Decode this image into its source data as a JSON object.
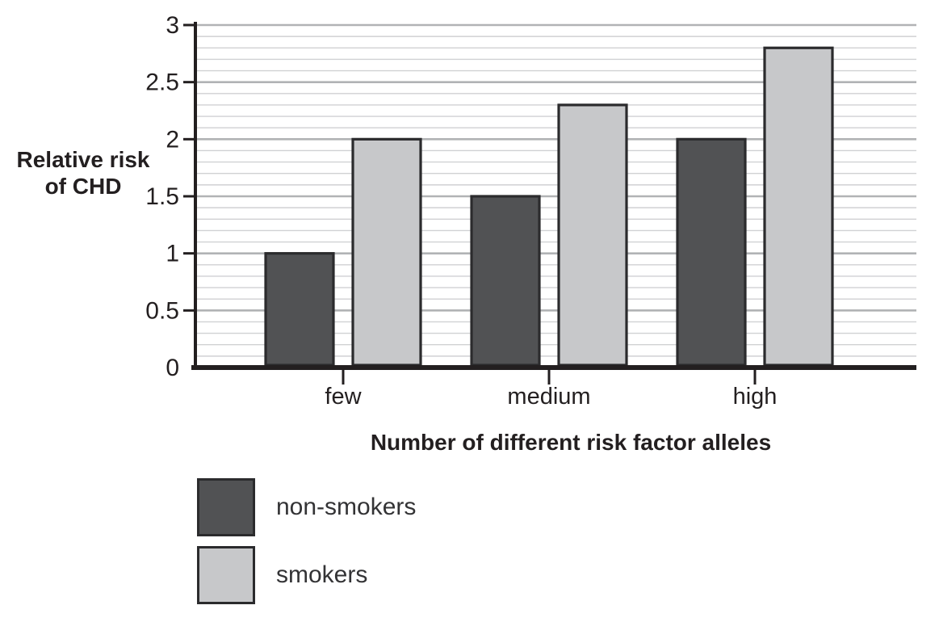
{
  "chart_data": {
    "type": "bar",
    "title": "",
    "ylabel": "Relative risk of CHD",
    "ylabel_lines": [
      "Relative risk",
      "of CHD"
    ],
    "xlabel": "Number of different risk factor alleles",
    "categories": [
      "few",
      "medium",
      "high"
    ],
    "series": [
      {
        "name": "non-smokers",
        "color": "#515254",
        "values": [
          1.0,
          1.5,
          2.0
        ]
      },
      {
        "name": "smokers",
        "color": "#c7c8ca",
        "values": [
          2.0,
          2.3,
          2.8
        ]
      }
    ],
    "y_axis": {
      "min": 0,
      "max": 3,
      "major_step": 0.5,
      "minor_step": 0.1,
      "tick_labels": [
        "0",
        "0.5",
        "1",
        "1.5",
        "2",
        "2.5",
        "3"
      ]
    },
    "ylim": [
      0,
      3
    ],
    "grid": "horizontal-minor-and-major",
    "legend_position": "bottom-left",
    "colors": {
      "axis": "#231f20",
      "text": "#231f20",
      "minor_grid": "#d0d1d3",
      "major_grid": "#b1b3b5",
      "bar_stroke": "#2b2b2d",
      "background": "#ffffff"
    }
  }
}
